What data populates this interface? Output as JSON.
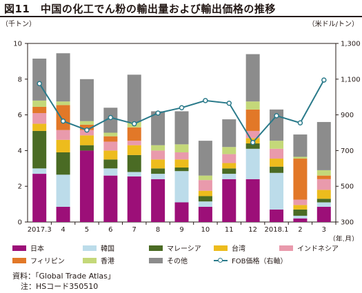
{
  "title": "図11　中国の化工でん粉の輸出量および輸出価格の推移",
  "notes": {
    "source": "資料：「Global Trade Atlas」",
    "note": "注：HSコード350510"
  },
  "chart_data": {
    "type": "bar",
    "stacked": true,
    "left_axis_label": "（千トン）",
    "right_axis_label": "（米ドル/トン）",
    "x_unit_label": "（年.月）",
    "categories": [
      "2017.3",
      "4",
      "5",
      "6",
      "7",
      "8",
      "9",
      "10",
      "11",
      "12",
      "2018.1",
      "2",
      "3"
    ],
    "ylim": [
      0,
      10
    ],
    "yticks": [
      0,
      2,
      4,
      6,
      8,
      10
    ],
    "y2lim": [
      300,
      1300
    ],
    "y2ticks": [
      300,
      500,
      700,
      900,
      1100,
      1300
    ],
    "y2tick_labels": [
      "300",
      "500",
      "700",
      "900",
      "1,100",
      "1,300"
    ],
    "series": [
      {
        "name": "日本",
        "color": "#9c0f78",
        "values": [
          2.7,
          0.85,
          4.0,
          2.6,
          2.55,
          2.4,
          1.1,
          0.85,
          2.4,
          2.4,
          0.7,
          0.2,
          0.85
        ]
      },
      {
        "name": "韓国",
        "color": "#bcdcea",
        "values": [
          0.3,
          1.8,
          0.0,
          0.4,
          0.25,
          0.3,
          1.75,
          0.3,
          0.3,
          1.7,
          2.05,
          0.15,
          0.25
        ]
      },
      {
        "name": "マレーシア",
        "color": "#4a6b24",
        "values": [
          2.1,
          1.25,
          0.3,
          0.5,
          0.95,
          0.3,
          0.2,
          0.3,
          0.3,
          0.3,
          0.35,
          0.35,
          0.2
        ]
      },
      {
        "name": "台湾",
        "color": "#edbc1d",
        "values": [
          0.4,
          0.7,
          0.55,
          0.5,
          0.55,
          0.5,
          0.45,
          0.3,
          0.3,
          0.3,
          0.45,
          0.25,
          0.5
        ]
      },
      {
        "name": "インドネシア",
        "color": "#e99aac",
        "values": [
          0.6,
          0.55,
          0.3,
          0.5,
          0.25,
          0.5,
          0.4,
          0.6,
          0.5,
          0.4,
          0.55,
          0.3,
          0.6
        ]
      },
      {
        "name": "フィリピン",
        "color": "#e27828",
        "values": [
          0.35,
          1.4,
          0.3,
          0.3,
          0.75,
          0.0,
          0.0,
          0.0,
          0.0,
          1.2,
          0.0,
          2.3,
          0.2
        ]
      },
      {
        "name": "香港",
        "color": "#c4d879",
        "values": [
          0.35,
          0.2,
          0.2,
          0.2,
          0.3,
          0.3,
          0.45,
          0.25,
          0.4,
          0.45,
          0.45,
          0.1,
          0.3
        ]
      },
      {
        "name": "その他",
        "color": "#8c8c8c",
        "values": [
          2.35,
          2.7,
          2.35,
          1.4,
          2.65,
          1.9,
          1.85,
          1.95,
          1.55,
          2.65,
          1.75,
          1.25,
          2.7
        ]
      }
    ],
    "line": {
      "name": "FOB価格（右軸）",
      "color": "#2a7a8a",
      "axis": "right",
      "values": [
        1075,
        865,
        815,
        885,
        850,
        910,
        940,
        980,
        965,
        745,
        895,
        855,
        1095
      ]
    },
    "grid": false,
    "legend_position": "bottom"
  }
}
